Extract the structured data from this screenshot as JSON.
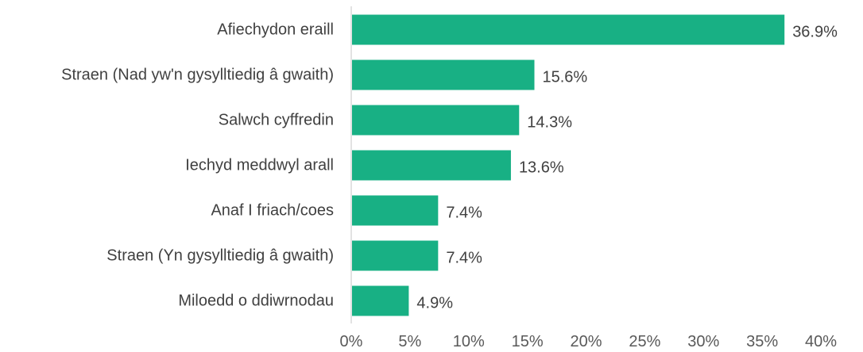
{
  "chart_data": {
    "type": "bar",
    "orientation": "horizontal",
    "categories": [
      "Afiechydon eraill",
      "Straen (Nad yw'n gysylltiedig â gwaith)",
      "Salwch cyffredin",
      "Iechyd meddwyl arall",
      "Anaf I friach/coes",
      "Straen (Yn gysylltiedig â gwaith)",
      "Miloedd o ddiwrnodau"
    ],
    "values": [
      36.9,
      15.6,
      14.3,
      13.6,
      7.4,
      7.4,
      4.9
    ],
    "data_labels": [
      "36.9%",
      "15.6%",
      "14.3%",
      "13.6%",
      "7.4%",
      "7.4%",
      "4.9%"
    ],
    "x_ticks": [
      "0%",
      "5%",
      "10%",
      "15%",
      "20%",
      "25%",
      "30%",
      "35%",
      "40%"
    ],
    "xlim": [
      0,
      40
    ],
    "grid": false,
    "legend": "none",
    "colors": {
      "bar": "#18B084",
      "axis": "#D9D9D9",
      "text": "#404040"
    }
  }
}
